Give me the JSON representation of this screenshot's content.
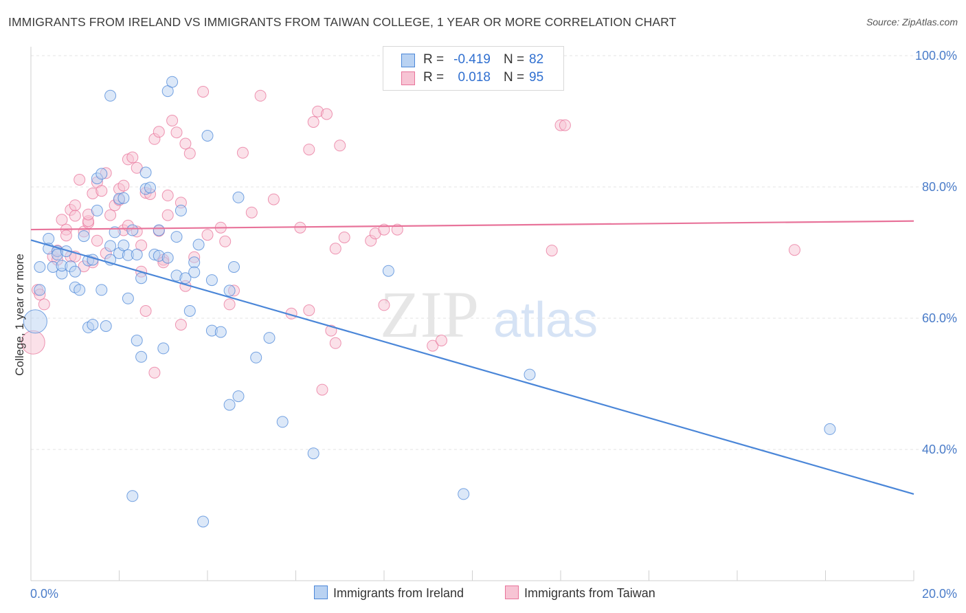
{
  "title": "IMMIGRANTS FROM IRELAND VS IMMIGRANTS FROM TAIWAN COLLEGE, 1 YEAR OR MORE CORRELATION CHART",
  "source": "Source: ZipAtlas.com",
  "watermark": {
    "zip": "ZIP",
    "atlas": "atlas"
  },
  "colors": {
    "ireland": "#4a86d8",
    "ireland_fill": "#b9d2f2",
    "taiwan": "#e8739a",
    "taiwan_fill": "#f7c4d4",
    "axis_text": "#4a7cc9"
  },
  "legend": {
    "rows": [
      {
        "r_label": "R =",
        "r_value": "-0.419",
        "n_label": "N =",
        "n_value": "82"
      },
      {
        "r_label": "R =",
        "r_value": "0.018",
        "n_label": "N =",
        "n_value": "95"
      }
    ]
  },
  "bottom_legend": {
    "ireland": "Immigrants from Ireland",
    "taiwan": "Immigrants from Taiwan"
  },
  "chart_data": {
    "type": "scatter",
    "title": "IMMIGRANTS FROM IRELAND VS IMMIGRANTS FROM TAIWAN COLLEGE, 1 YEAR OR MORE CORRELATION CHART",
    "xlabel": "",
    "ylabel": "College, 1 year or more",
    "xlim": [
      0,
      20
    ],
    "ylim": [
      20,
      104
    ],
    "x_ticks": [
      "0.0%",
      "20.0%"
    ],
    "y_ticks": [
      {
        "value": 100,
        "label": "100.0%"
      },
      {
        "value": 80,
        "label": "80.0%"
      },
      {
        "value": 60,
        "label": "60.0%"
      },
      {
        "value": 40,
        "label": "40.0%"
      }
    ],
    "grid": true,
    "legend_position": "top-center",
    "series": [
      {
        "name": "Immigrants from Ireland",
        "color": "#4a86d8",
        "trend": {
          "x": [
            0,
            20
          ],
          "y": [
            71.9,
            33.2
          ]
        },
        "points": [
          [
            0.1,
            59.5
          ],
          [
            0.2,
            64.3
          ],
          [
            0.2,
            67.8
          ],
          [
            0.4,
            72.1
          ],
          [
            0.4,
            70.6
          ],
          [
            0.5,
            67.8
          ],
          [
            0.6,
            70.2
          ],
          [
            0.6,
            69.7
          ],
          [
            0.7,
            66.8
          ],
          [
            0.7,
            68.0
          ],
          [
            0.8,
            70.2
          ],
          [
            0.9,
            67.9
          ],
          [
            1.0,
            64.7
          ],
          [
            1.0,
            67.1
          ],
          [
            1.1,
            64.3
          ],
          [
            1.2,
            72.5
          ],
          [
            1.3,
            68.8
          ],
          [
            1.3,
            58.6
          ],
          [
            1.4,
            59.0
          ],
          [
            1.4,
            68.9
          ],
          [
            1.5,
            76.4
          ],
          [
            1.5,
            81.3
          ],
          [
            1.6,
            82.0
          ],
          [
            1.6,
            64.3
          ],
          [
            1.7,
            58.8
          ],
          [
            1.8,
            71.0
          ],
          [
            1.8,
            68.9
          ],
          [
            1.8,
            93.9
          ],
          [
            1.9,
            73.1
          ],
          [
            2.0,
            78.2
          ],
          [
            2.0,
            69.9
          ],
          [
            2.1,
            71.1
          ],
          [
            2.1,
            78.3
          ],
          [
            2.2,
            69.6
          ],
          [
            2.2,
            63.0
          ],
          [
            2.3,
            73.4
          ],
          [
            2.3,
            32.9
          ],
          [
            2.4,
            69.7
          ],
          [
            2.4,
            56.6
          ],
          [
            2.5,
            54.1
          ],
          [
            2.5,
            66.1
          ],
          [
            2.6,
            79.7
          ],
          [
            2.6,
            82.2
          ],
          [
            2.7,
            79.9
          ],
          [
            2.8,
            69.7
          ],
          [
            2.9,
            73.4
          ],
          [
            2.9,
            69.5
          ],
          [
            3.0,
            55.4
          ],
          [
            3.1,
            69.2
          ],
          [
            3.1,
            94.6
          ],
          [
            3.2,
            96.0
          ],
          [
            3.3,
            72.4
          ],
          [
            3.3,
            66.5
          ],
          [
            3.4,
            76.4
          ],
          [
            3.5,
            66.1
          ],
          [
            3.6,
            61.1
          ],
          [
            3.7,
            68.5
          ],
          [
            3.7,
            67.0
          ],
          [
            3.8,
            71.2
          ],
          [
            3.9,
            29.0
          ],
          [
            4.0,
            87.8
          ],
          [
            4.1,
            58.1
          ],
          [
            4.1,
            65.8
          ],
          [
            4.3,
            57.9
          ],
          [
            4.5,
            46.8
          ],
          [
            4.5,
            64.2
          ],
          [
            4.6,
            67.8
          ],
          [
            4.7,
            78.4
          ],
          [
            4.7,
            48.1
          ],
          [
            5.1,
            54.0
          ],
          [
            5.4,
            57.0
          ],
          [
            5.7,
            44.2
          ],
          [
            6.4,
            39.4
          ],
          [
            8.1,
            67.2
          ],
          [
            9.8,
            33.2
          ],
          [
            11.3,
            51.4
          ],
          [
            18.1,
            43.1
          ]
        ]
      },
      {
        "name": "Immigrants from Taiwan",
        "color": "#e8739a",
        "trend": {
          "x": [
            0,
            20
          ],
          "y": [
            73.5,
            74.8
          ]
        },
        "points": [
          [
            0.05,
            56.3
          ],
          [
            0.15,
            64.3
          ],
          [
            0.2,
            63.6
          ],
          [
            0.3,
            62.1
          ],
          [
            0.5,
            69.4
          ],
          [
            0.6,
            68.9
          ],
          [
            0.6,
            70.3
          ],
          [
            0.7,
            75.0
          ],
          [
            0.8,
            73.5
          ],
          [
            0.8,
            72.6
          ],
          [
            0.9,
            69.4
          ],
          [
            0.9,
            76.5
          ],
          [
            1.0,
            77.2
          ],
          [
            1.0,
            75.6
          ],
          [
            1.0,
            69.4
          ],
          [
            1.1,
            81.1
          ],
          [
            1.2,
            73.2
          ],
          [
            1.2,
            67.9
          ],
          [
            1.3,
            74.5
          ],
          [
            1.3,
            74.8
          ],
          [
            1.3,
            75.8
          ],
          [
            1.4,
            79.0
          ],
          [
            1.4,
            68.5
          ],
          [
            1.5,
            71.8
          ],
          [
            1.5,
            80.7
          ],
          [
            1.6,
            79.4
          ],
          [
            1.7,
            69.9
          ],
          [
            1.7,
            82.1
          ],
          [
            1.8,
            75.7
          ],
          [
            1.9,
            77.2
          ],
          [
            2.0,
            79.7
          ],
          [
            2.0,
            78.0
          ],
          [
            2.1,
            80.2
          ],
          [
            2.1,
            73.4
          ],
          [
            2.2,
            84.2
          ],
          [
            2.2,
            74.1
          ],
          [
            2.3,
            84.5
          ],
          [
            2.4,
            82.9
          ],
          [
            2.4,
            73.2
          ],
          [
            2.5,
            67.1
          ],
          [
            2.5,
            71.1
          ],
          [
            2.6,
            79.1
          ],
          [
            2.6,
            61.1
          ],
          [
            2.7,
            78.9
          ],
          [
            2.8,
            87.3
          ],
          [
            2.8,
            51.7
          ],
          [
            2.9,
            88.4
          ],
          [
            2.9,
            73.3
          ],
          [
            3.0,
            68.9
          ],
          [
            3.0,
            68.5
          ],
          [
            3.1,
            75.7
          ],
          [
            3.1,
            78.7
          ],
          [
            3.2,
            90.1
          ],
          [
            3.3,
            88.3
          ],
          [
            3.4,
            77.6
          ],
          [
            3.4,
            59.0
          ],
          [
            3.5,
            64.9
          ],
          [
            3.5,
            86.6
          ],
          [
            3.6,
            85.1
          ],
          [
            3.7,
            69.3
          ],
          [
            3.9,
            94.5
          ],
          [
            4.0,
            72.7
          ],
          [
            4.3,
            73.8
          ],
          [
            4.4,
            71.7
          ],
          [
            4.5,
            62.1
          ],
          [
            4.6,
            64.2
          ],
          [
            4.8,
            85.2
          ],
          [
            5.0,
            76.1
          ],
          [
            5.2,
            93.9
          ],
          [
            5.5,
            78.1
          ],
          [
            5.9,
            60.7
          ],
          [
            6.1,
            73.8
          ],
          [
            6.3,
            85.7
          ],
          [
            6.3,
            61.2
          ],
          [
            6.4,
            89.9
          ],
          [
            6.5,
            91.5
          ],
          [
            6.6,
            49.1
          ],
          [
            6.7,
            91.1
          ],
          [
            6.8,
            58.1
          ],
          [
            6.9,
            70.6
          ],
          [
            6.9,
            56.2
          ],
          [
            7.0,
            86.3
          ],
          [
            7.1,
            72.3
          ],
          [
            7.7,
            71.8
          ],
          [
            7.8,
            72.9
          ],
          [
            8.0,
            73.5
          ],
          [
            8.0,
            62.0
          ],
          [
            8.3,
            73.5
          ],
          [
            9.1,
            55.8
          ],
          [
            9.3,
            56.6
          ],
          [
            11.8,
            70.3
          ],
          [
            12.0,
            89.4
          ],
          [
            12.1,
            89.4
          ],
          [
            17.3,
            70.4
          ]
        ]
      }
    ]
  }
}
